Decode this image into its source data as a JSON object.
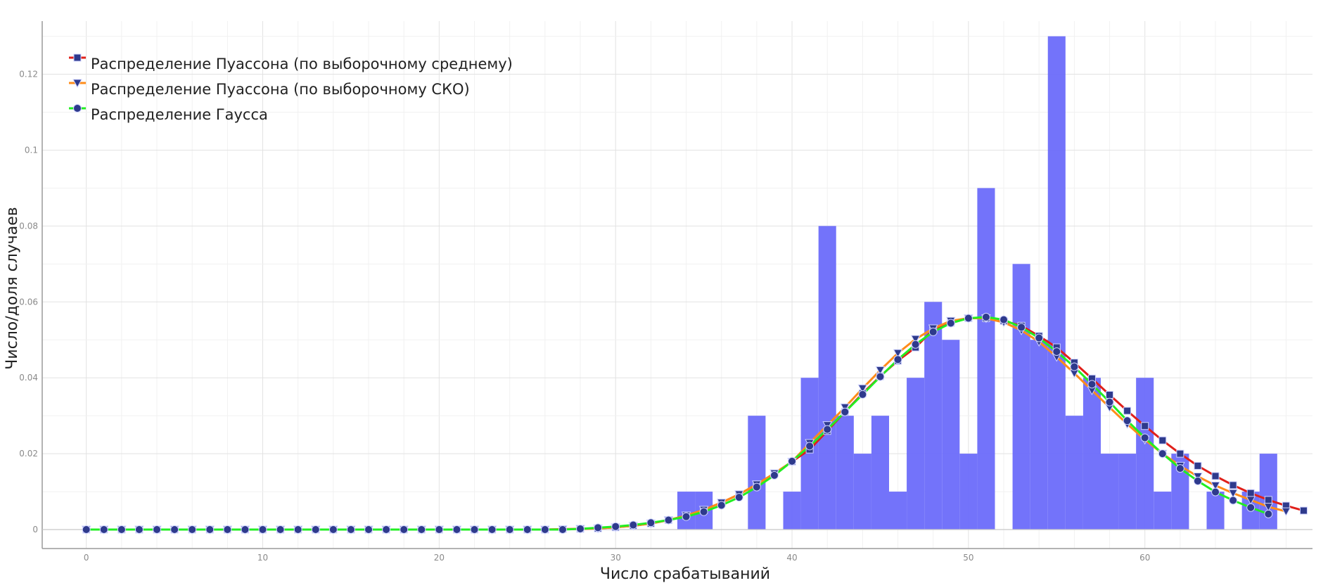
{
  "chart_data": {
    "type": "bar+line",
    "xlabel": "Число срабатываний",
    "ylabel": "Число/доля случаев",
    "xlim": [
      -2.5,
      69.5
    ],
    "ylim": [
      -0.005,
      0.134
    ],
    "x_ticks": [
      0,
      10,
      20,
      30,
      40,
      50,
      60
    ],
    "y_ticks": [
      0,
      0.02,
      0.04,
      0.06,
      0.08,
      0.1,
      0.12
    ],
    "grid": true,
    "legend_position": "top-left",
    "histogram": {
      "color": "#6b6bfa",
      "x": [
        34,
        35,
        38,
        40,
        41,
        42,
        43,
        44,
        45,
        46,
        47,
        48,
        49,
        50,
        51,
        53,
        54,
        55,
        56,
        57,
        58,
        59,
        60,
        61,
        62,
        64,
        66,
        67
      ],
      "values": [
        0.01,
        0.01,
        0.03,
        0.01,
        0.04,
        0.08,
        0.03,
        0.02,
        0.03,
        0.01,
        0.04,
        0.06,
        0.05,
        0.02,
        0.09,
        0.07,
        0.05,
        0.13,
        0.03,
        0.04,
        0.02,
        0.02,
        0.04,
        0.01,
        0.02,
        0.01,
        0.01,
        0.02
      ]
    },
    "series": [
      {
        "name": "Распределение Пуассона (по выборочному среднему)",
        "color": "#e0201a",
        "marker": "square",
        "x_start": 0,
        "values": [
          0,
          0,
          0,
          0,
          0,
          0,
          0,
          0,
          0,
          0,
          0,
          0,
          0,
          0,
          0,
          0,
          0,
          0,
          0,
          0,
          0,
          0,
          0,
          0,
          0,
          0,
          0,
          0.0001,
          0.0002,
          0.0003,
          0.0006,
          0.001,
          0.0016,
          0.0025,
          0.0037,
          0.0052,
          0.0071,
          0.0093,
          0.0119,
          0.0148,
          0.0179,
          0.0211,
          0.026,
          0.031,
          0.0359,
          0.0404,
          0.0445,
          0.048,
          0.0527,
          0.0545,
          0.0557,
          0.0557,
          0.055,
          0.0537,
          0.051,
          0.048,
          0.044,
          0.0398,
          0.0355,
          0.0313,
          0.0273,
          0.0235,
          0.02,
          0.0168,
          0.0141,
          0.0117,
          0.0096,
          0.0078,
          0.0063,
          0.005
        ]
      },
      {
        "name": "Распределение Пуассона (по выборочному СКО)",
        "color": "#ff8c1a",
        "marker": "triangle-down",
        "x_start": 0,
        "values": [
          0,
          0,
          0,
          0,
          0,
          0,
          0,
          0,
          0,
          0,
          0,
          0,
          0,
          0,
          0,
          0,
          0,
          0,
          0,
          0,
          0,
          0,
          0,
          0,
          0,
          0,
          0,
          0.0001,
          0.0002,
          0.0003,
          0.0006,
          0.001,
          0.0016,
          0.0025,
          0.0037,
          0.0052,
          0.0071,
          0.0093,
          0.0119,
          0.0148,
          0.0179,
          0.0228,
          0.0275,
          0.0322,
          0.0372,
          0.042,
          0.0465,
          0.0502,
          0.053,
          0.055,
          0.0557,
          0.0557,
          0.0546,
          0.0525,
          0.0495,
          0.0455,
          0.0412,
          0.0367,
          0.0322,
          0.0278,
          0.0237,
          0.02,
          0.0168,
          0.014,
          0.0116,
          0.0096,
          0.0078,
          0.006,
          0.0048
        ]
      },
      {
        "name": "Распределение Гаусса",
        "color": "#22ee22",
        "marker": "circle",
        "x_start": 0,
        "values": [
          0,
          0,
          0,
          0,
          0,
          0,
          0,
          0,
          0,
          0,
          0,
          0,
          0,
          0,
          0,
          0,
          0,
          0,
          0,
          0,
          0,
          0,
          0,
          0,
          0,
          0,
          0,
          0,
          0.0002,
          0.0005,
          0.0008,
          0.0012,
          0.0018,
          0.0025,
          0.0034,
          0.0047,
          0.0064,
          0.0085,
          0.0112,
          0.0143,
          0.018,
          0.022,
          0.0264,
          0.031,
          0.0356,
          0.0403,
          0.0448,
          0.0488,
          0.0521,
          0.0544,
          0.0557,
          0.056,
          0.0553,
          0.0533,
          0.0505,
          0.0469,
          0.0429,
          0.0383,
          0.0336,
          0.0287,
          0.0242,
          0.02,
          0.0161,
          0.0128,
          0.0099,
          0.0077,
          0.0058,
          0.0041
        ]
      }
    ],
    "marker_fill": "#2e3a8c"
  }
}
